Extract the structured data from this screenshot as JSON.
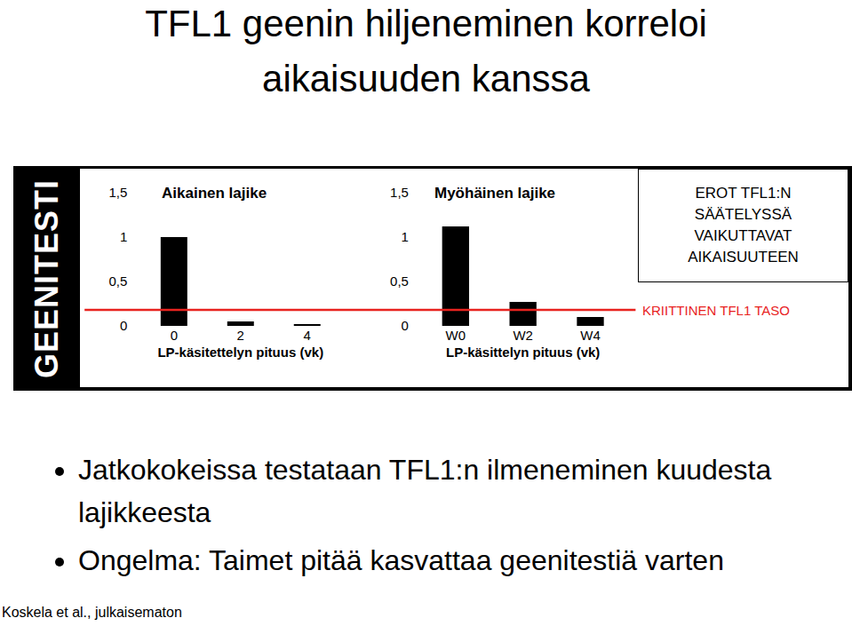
{
  "title": [
    "TFL1 geenin hiljeneminen korreloi",
    "aikaisuuden kanssa"
  ],
  "side_label": "GEENITESTI",
  "chart_data": [
    {
      "type": "bar",
      "title": "Aikainen lajike",
      "categories": [
        "0",
        "2",
        "4"
      ],
      "values": [
        1.0,
        0.05,
        0.02
      ],
      "color": "#000000",
      "ylim": [
        0,
        1.5
      ],
      "yticks": [
        0,
        {
          "value": 0.5,
          "label": "0,5"
        },
        1,
        {
          "value": 1.5,
          "label": "1,5"
        }
      ],
      "x_label": "LP-käsitettelyn pituus (vk)",
      "grid": false
    },
    {
      "type": "bar",
      "title": "Myöhäinen lajike",
      "categories": [
        "W0",
        "W2",
        "W4"
      ],
      "values": [
        1.12,
        0.27,
        0.1
      ],
      "color": "#000000",
      "ylim": [
        0,
        1.5
      ],
      "yticks": [
        0,
        {
          "value": 0.5,
          "label": "0,5"
        },
        1,
        {
          "value": 1.5,
          "label": "1,5"
        }
      ],
      "x_label": "LP-käsittelyn pituus (vk)",
      "grid": false
    }
  ],
  "critical_level": {
    "value": 0.18,
    "label": "KRIITTINEN TFL1 TASO",
    "color": "#e8231f"
  },
  "box_text": [
    "EROT TFL1:N",
    "SÄÄTELYSSÄ",
    "VAIKUTTAVAT",
    "AIKAISUUTEEN"
  ],
  "bullets": [
    "Jatkokokeissa testataan TFL1:n ilmeneminen kuudesta lajikkeesta",
    "Ongelma: Taimet pitää kasvattaa geenitestiä varten"
  ],
  "source": "Koskela et al., julkaisematon"
}
